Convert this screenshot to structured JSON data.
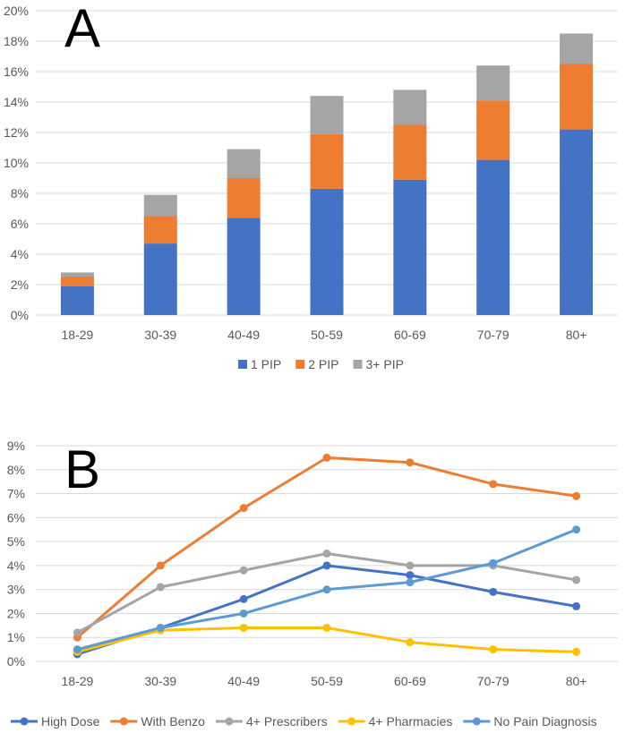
{
  "chart_data": [
    {
      "type": "bar",
      "stacked": true,
      "panel_label": "A",
      "categories": [
        "18-29",
        "30-39",
        "40-49",
        "50-59",
        "60-69",
        "70-79",
        "80+"
      ],
      "series": [
        {
          "name": "1 PIP",
          "color": "#4472C4",
          "values": [
            1.9,
            4.7,
            6.4,
            8.3,
            8.9,
            10.2,
            12.2
          ]
        },
        {
          "name": "2 PIP",
          "color": "#ED7D31",
          "values": [
            0.6,
            1.8,
            2.6,
            3.6,
            3.6,
            3.9,
            4.3
          ]
        },
        {
          "name": "3+ PIP",
          "color": "#A5A5A5",
          "values": [
            0.3,
            1.4,
            1.9,
            2.5,
            2.3,
            2.3,
            2.0
          ]
        }
      ],
      "yticks": [
        "0%",
        "2%",
        "4%",
        "6%",
        "8%",
        "10%",
        "12%",
        "14%",
        "16%",
        "18%",
        "20%"
      ],
      "ylim": [
        0,
        20
      ],
      "grid": true,
      "legend": "bottom"
    },
    {
      "type": "line",
      "panel_label": "B",
      "categories": [
        "18-29",
        "30-39",
        "40-49",
        "50-59",
        "60-69",
        "70-79",
        "80+"
      ],
      "series": [
        {
          "name": "High Dose",
          "color": "#4472C4",
          "values": [
            0.3,
            1.4,
            2.6,
            4.0,
            3.6,
            2.9,
            2.3
          ]
        },
        {
          "name": "With Benzo",
          "color": "#ED7D31",
          "values": [
            1.0,
            4.0,
            6.4,
            8.5,
            8.3,
            7.4,
            6.9
          ]
        },
        {
          "name": "4+ Prescribers",
          "color": "#A5A5A5",
          "values": [
            1.2,
            3.1,
            3.8,
            4.5,
            4.0,
            4.0,
            3.4
          ]
        },
        {
          "name": "4+ Pharmacies",
          "color": "#FFC000",
          "values": [
            0.4,
            1.3,
            1.4,
            1.4,
            0.8,
            0.5,
            0.4
          ]
        },
        {
          "name": "No Pain Diagnosis",
          "color": "#5B9BD5",
          "values": [
            0.5,
            1.4,
            2.0,
            3.0,
            3.3,
            4.1,
            5.5
          ]
        }
      ],
      "yticks": [
        "0%",
        "1%",
        "2%",
        "3%",
        "4%",
        "5%",
        "6%",
        "7%",
        "8%",
        "9%"
      ],
      "ylim": [
        0,
        9
      ],
      "grid": true,
      "legend": "bottom"
    }
  ]
}
